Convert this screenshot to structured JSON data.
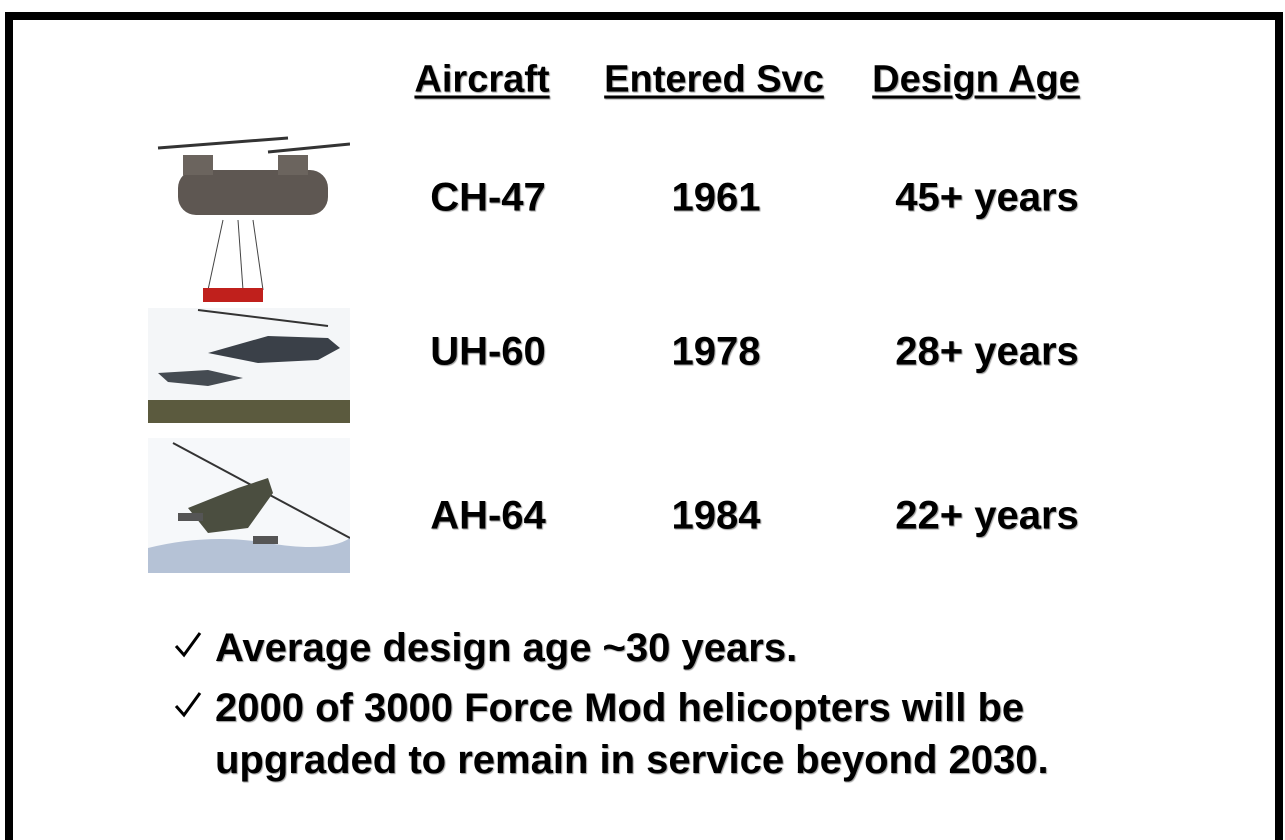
{
  "table": {
    "headers": [
      "Aircraft",
      "Entered Svc",
      "Design Age"
    ],
    "rows": [
      [
        "CH-47",
        "1961",
        "45+ years"
      ],
      [
        "UH-60",
        "1978",
        "28+ years"
      ],
      [
        "AH-64",
        "1984",
        "22+ years"
      ]
    ]
  },
  "bullets": [
    "Average design age  ~30 years.",
    "2000 of 3000 Force Mod helicopters will be upgraded to remain in service beyond 2030."
  ]
}
